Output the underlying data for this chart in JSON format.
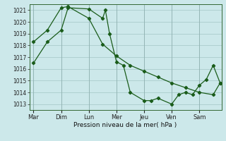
{
  "background_color": "#cce8ea",
  "grid_color": "#aacccc",
  "line_color": "#1a5c1a",
  "xlabel": "Pression niveau de la mer( hPa )",
  "ylim": [
    1012.5,
    1021.5
  ],
  "yticks": [
    1013,
    1014,
    1015,
    1016,
    1017,
    1018,
    1019,
    1020,
    1021
  ],
  "day_labels": [
    "Mar",
    "Dim",
    "Lun",
    "Mer",
    "Jeu",
    "Ven",
    "Sam"
  ],
  "day_positions": [
    0.0,
    1.0,
    2.0,
    3.0,
    4.0,
    5.0,
    6.0
  ],
  "xlim": [
    -0.15,
    6.8
  ],
  "series1_x": [
    0.0,
    0.5,
    1.0,
    1.25,
    2.0,
    2.5,
    2.6,
    2.75,
    3.0,
    3.25,
    3.5,
    4.0,
    4.25,
    4.5,
    5.0,
    5.25,
    5.5,
    5.75,
    6.0,
    6.25,
    6.5,
    6.75
  ],
  "series1_y": [
    1016.5,
    1018.3,
    1019.3,
    1021.2,
    1021.1,
    1020.3,
    1021.0,
    1019.0,
    1016.6,
    1016.3,
    1014.0,
    1013.3,
    1013.3,
    1013.5,
    1013.0,
    1013.8,
    1014.0,
    1013.8,
    1014.6,
    1015.1,
    1016.3,
    1014.8
  ],
  "series2_x": [
    0.0,
    0.5,
    1.0,
    1.25,
    2.0,
    2.5,
    3.0,
    3.5,
    4.0,
    4.5,
    5.0,
    5.5,
    6.0,
    6.5,
    6.75
  ],
  "series2_y": [
    1018.3,
    1019.3,
    1021.2,
    1021.3,
    1020.3,
    1018.1,
    1017.1,
    1016.3,
    1015.8,
    1015.3,
    1014.8,
    1014.4,
    1014.0,
    1013.8,
    1014.8
  ]
}
